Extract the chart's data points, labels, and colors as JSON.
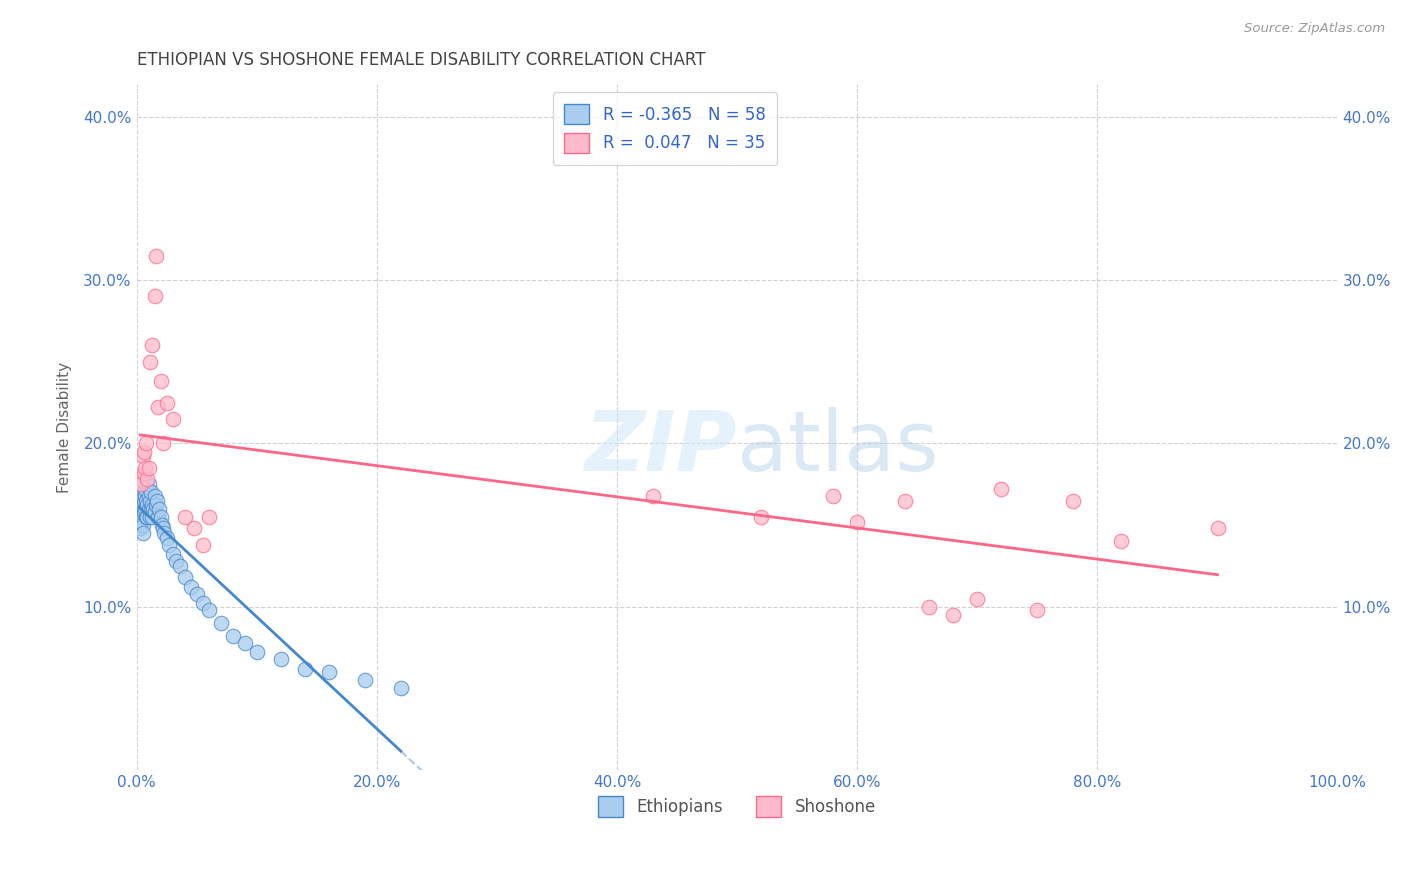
{
  "title": "ETHIOPIAN VS SHOSHONE FEMALE DISABILITY CORRELATION CHART",
  "source": "Source: ZipAtlas.com",
  "ylabel": "Female Disability",
  "xlim": [
    0.0,
    1.0
  ],
  "ylim": [
    0.0,
    0.42
  ],
  "xticks": [
    0.0,
    0.2,
    0.4,
    0.6,
    0.8,
    1.0
  ],
  "xtick_labels": [
    "0.0%",
    "20.0%",
    "40.0%",
    "60.0%",
    "80.0%",
    "100.0%"
  ],
  "yticks": [
    0.0,
    0.1,
    0.2,
    0.3,
    0.4
  ],
  "ytick_labels": [
    "",
    "10.0%",
    "20.0%",
    "30.0%",
    "40.0%"
  ],
  "legend_r_blue": "R = -0.365",
  "legend_n_blue": "N = 58",
  "legend_r_pink": "R =  0.047",
  "legend_n_pink": "N = 35",
  "blue_color": "#aaccee",
  "pink_color": "#ffbbcc",
  "blue_line_color": "#4488cc",
  "pink_line_color": "#ff6688",
  "grid_color": "#cccccc",
  "background_color": "#ffffff",
  "ethiopians_x": [
    0.002,
    0.003,
    0.003,
    0.004,
    0.004,
    0.005,
    0.005,
    0.005,
    0.006,
    0.006,
    0.006,
    0.007,
    0.007,
    0.007,
    0.008,
    0.008,
    0.008,
    0.009,
    0.009,
    0.01,
    0.01,
    0.01,
    0.011,
    0.011,
    0.012,
    0.012,
    0.013,
    0.013,
    0.014,
    0.015,
    0.015,
    0.016,
    0.017,
    0.018,
    0.019,
    0.02,
    0.021,
    0.022,
    0.023,
    0.025,
    0.027,
    0.03,
    0.033,
    0.036,
    0.04,
    0.045,
    0.05,
    0.055,
    0.06,
    0.07,
    0.08,
    0.09,
    0.1,
    0.12,
    0.14,
    0.16,
    0.19,
    0.22
  ],
  "ethiopians_y": [
    0.155,
    0.16,
    0.148,
    0.152,
    0.158,
    0.162,
    0.15,
    0.145,
    0.17,
    0.165,
    0.158,
    0.168,
    0.16,
    0.172,
    0.155,
    0.165,
    0.175,
    0.162,
    0.155,
    0.168,
    0.16,
    0.175,
    0.165,
    0.155,
    0.17,
    0.16,
    0.162,
    0.155,
    0.16,
    0.168,
    0.158,
    0.162,
    0.165,
    0.155,
    0.16,
    0.155,
    0.15,
    0.148,
    0.145,
    0.142,
    0.138,
    0.132,
    0.128,
    0.125,
    0.118,
    0.112,
    0.108,
    0.102,
    0.098,
    0.09,
    0.082,
    0.078,
    0.072,
    0.068,
    0.062,
    0.06,
    0.055,
    0.05
  ],
  "shoshone_x": [
    0.003,
    0.004,
    0.005,
    0.006,
    0.006,
    0.007,
    0.008,
    0.009,
    0.01,
    0.011,
    0.013,
    0.015,
    0.016,
    0.018,
    0.02,
    0.022,
    0.025,
    0.03,
    0.04,
    0.048,
    0.055,
    0.06,
    0.43,
    0.52,
    0.58,
    0.6,
    0.64,
    0.66,
    0.68,
    0.7,
    0.72,
    0.75,
    0.78,
    0.82,
    0.9
  ],
  "shoshone_y": [
    0.178,
    0.175,
    0.192,
    0.182,
    0.195,
    0.185,
    0.2,
    0.178,
    0.185,
    0.25,
    0.26,
    0.29,
    0.315,
    0.222,
    0.238,
    0.2,
    0.225,
    0.215,
    0.155,
    0.148,
    0.138,
    0.155,
    0.168,
    0.155,
    0.168,
    0.152,
    0.165,
    0.1,
    0.095,
    0.105,
    0.172,
    0.098,
    0.165,
    0.14,
    0.148
  ]
}
